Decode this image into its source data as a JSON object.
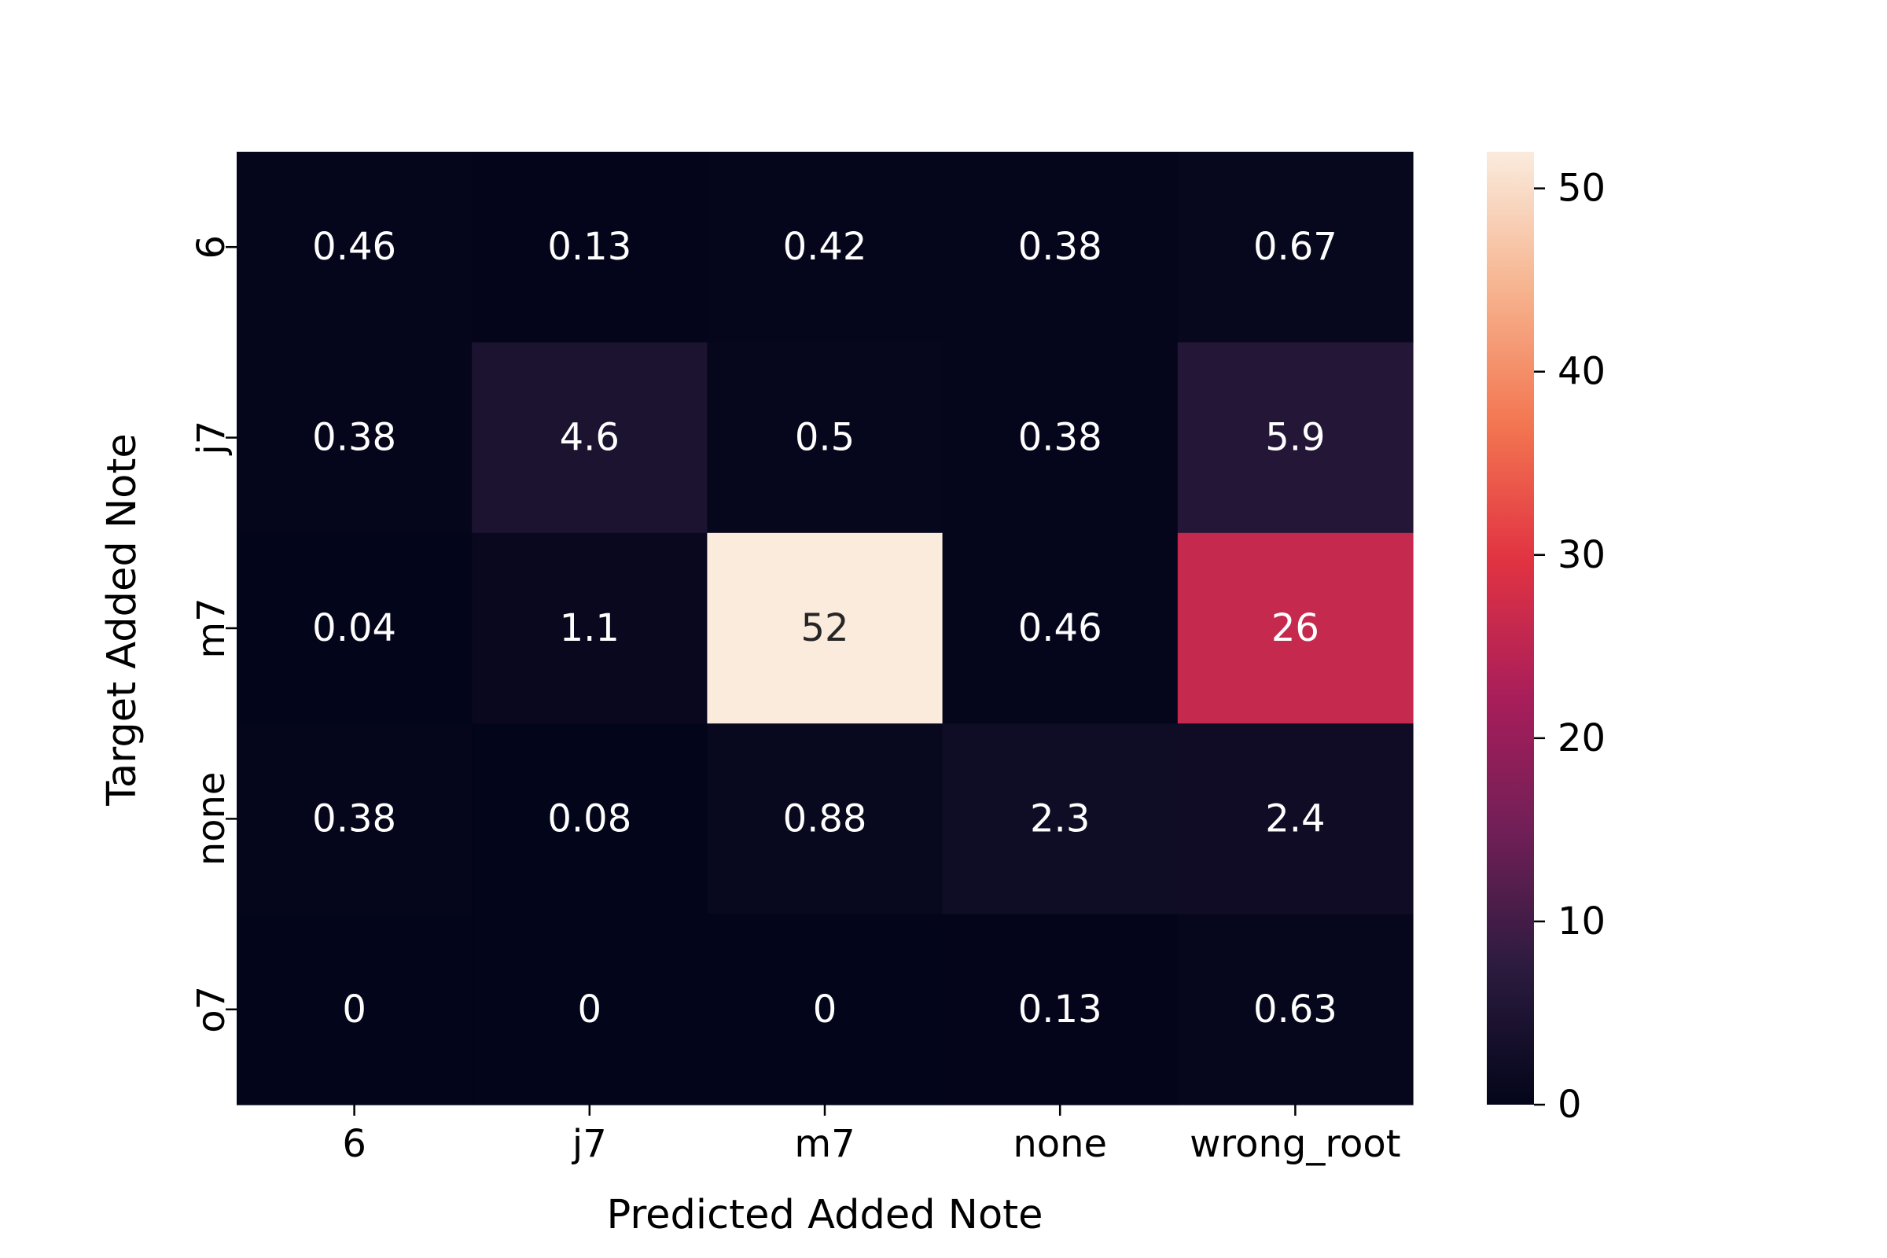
{
  "chart_data": {
    "type": "heatmap",
    "title": "",
    "xlabel": "Predicted Added Note",
    "ylabel": "Target Added Note",
    "x_categories": [
      "6",
      "j7",
      "m7",
      "none",
      "wrong_root"
    ],
    "y_categories": [
      "6",
      "j7",
      "m7",
      "none",
      "o7"
    ],
    "values": [
      [
        0.46,
        0.13,
        0.42,
        0.38,
        0.67
      ],
      [
        0.38,
        4.6,
        0.5,
        0.38,
        5.9
      ],
      [
        0.04,
        1.1,
        52,
        0.46,
        26
      ],
      [
        0.38,
        0.08,
        0.88,
        2.3,
        2.4
      ],
      [
        0,
        0,
        0,
        0.13,
        0.63
      ]
    ],
    "value_labels": [
      [
        "0.46",
        "0.13",
        "0.42",
        "0.38",
        "0.67"
      ],
      [
        "0.38",
        "4.6",
        "0.5",
        "0.38",
        "5.9"
      ],
      [
        "0.04",
        "1.1",
        "52",
        "0.46",
        "26"
      ],
      [
        "0.38",
        "0.08",
        "0.88",
        "2.3",
        "2.4"
      ],
      [
        "0",
        "0",
        "0",
        "0.13",
        "0.63"
      ]
    ],
    "colorbar": {
      "range": [
        0,
        52
      ],
      "ticks": [
        0,
        10,
        20,
        30,
        40,
        50
      ],
      "tick_labels": [
        "0",
        "10",
        "20",
        "30",
        "40",
        "50"
      ]
    },
    "colormap": [
      "#03051a",
      "#2b1b3e",
      "#701f57",
      "#a91e5a",
      "#e13342",
      "#f37651",
      "#f6b48f",
      "#faebdd"
    ]
  }
}
